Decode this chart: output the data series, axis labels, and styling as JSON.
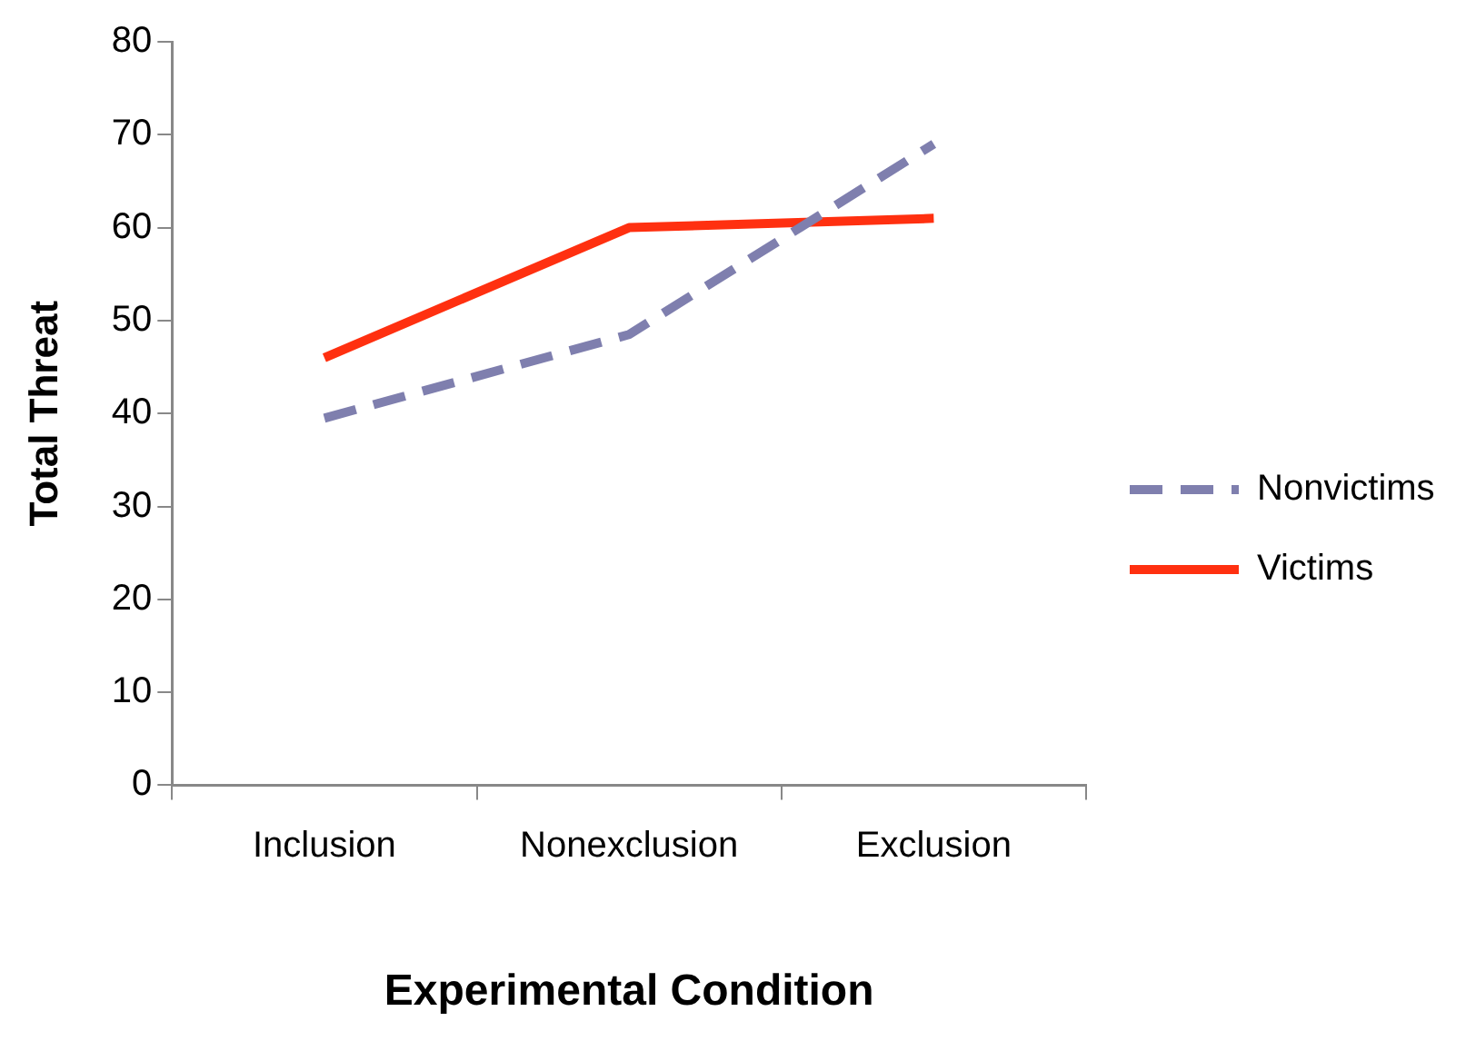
{
  "chart_data": {
    "type": "line",
    "xlabel": "Experimental Condition",
    "ylabel": "Total Threat",
    "categories": [
      "Inclusion",
      "Nonexclusion",
      "Exclusion"
    ],
    "series": [
      {
        "name": "Nonvictims",
        "color": "#7f7fae",
        "values": [
          39.5,
          48.5,
          69
        ],
        "line_style": "dashed"
      },
      {
        "name": "Victims",
        "color": "#ff3010",
        "values": [
          46,
          60,
          61
        ],
        "line_style": "solid"
      }
    ],
    "ylim": [
      0,
      80
    ],
    "yticks": [
      0,
      10,
      20,
      30,
      40,
      50,
      60,
      70,
      80
    ],
    "grid": false,
    "legend": "right",
    "marker": "none"
  }
}
